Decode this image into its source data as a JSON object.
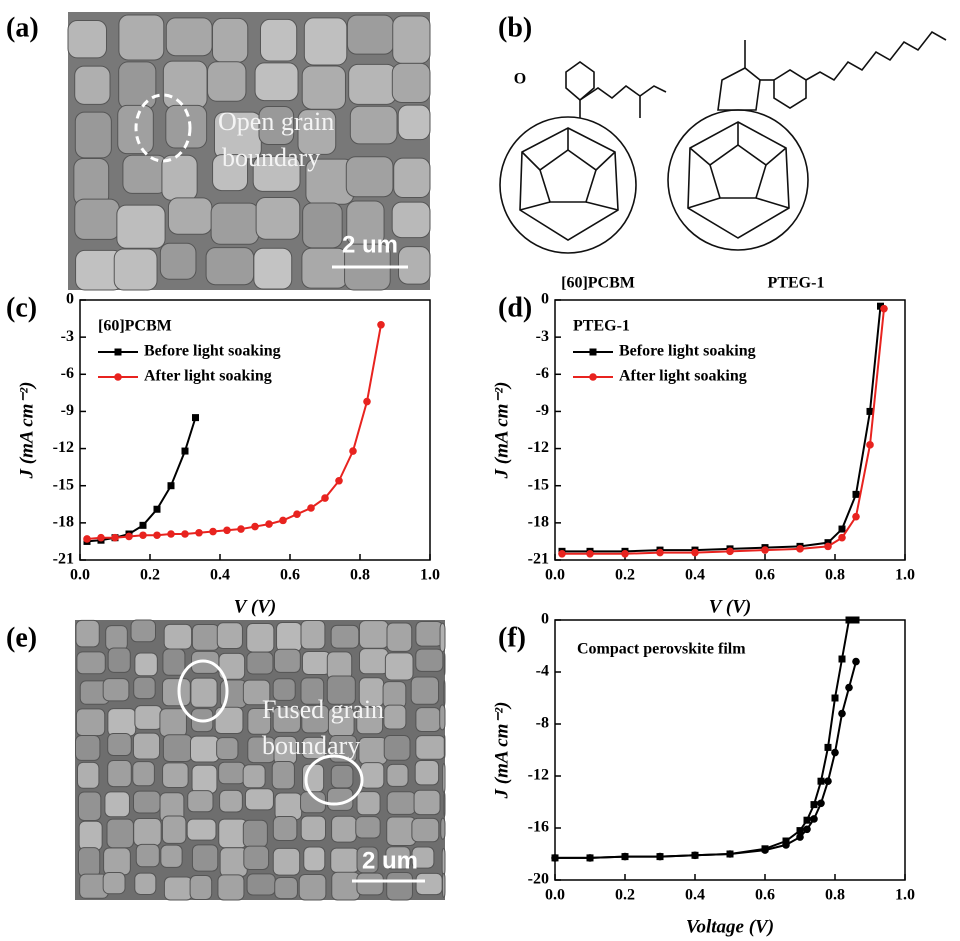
{
  "panels": {
    "a": {
      "label": "(a)",
      "annotation": [
        "Open grain",
        "boundary"
      ],
      "scale": "2 um"
    },
    "b": {
      "label": "(b)",
      "molecules": [
        "[60]PCBM",
        "PTEG-1"
      ]
    },
    "e": {
      "label": "(e)",
      "annotation": [
        "Fused grain",
        "boundary"
      ],
      "scale": "2 um"
    }
  },
  "chart_data": [
    {
      "type": "line",
      "label": "(c)",
      "legend_title": "[60]PCBM",
      "xlabel": "V (V)",
      "ylabel": "J (mA cm⁻²)",
      "xlim": [
        0,
        1
      ],
      "ylim": [
        -21,
        0
      ],
      "xticks": [
        {
          "value": 0,
          "label": "0.0"
        },
        0.2,
        0.4,
        0.6,
        0.8,
        {
          "value": 1,
          "label": "1.0"
        }
      ],
      "yticks": [
        0,
        -3,
        -6,
        -9,
        -12,
        -15,
        -18,
        -21
      ],
      "series": [
        {
          "name": "Before light soaking",
          "color": "#000000",
          "marker": "square",
          "x": [
            0.02,
            0.06,
            0.1,
            0.14,
            0.18,
            0.22,
            0.26,
            0.3,
            0.33
          ],
          "values": [
            -19.5,
            -19.4,
            -19.2,
            -18.9,
            -18.2,
            -16.9,
            -15.0,
            -12.2,
            -9.5
          ]
        },
        {
          "name": "After light soaking",
          "color": "#e8231f",
          "marker": "circle",
          "x": [
            0.02,
            0.06,
            0.1,
            0.14,
            0.18,
            0.22,
            0.26,
            0.3,
            0.34,
            0.38,
            0.42,
            0.46,
            0.5,
            0.54,
            0.58,
            0.62,
            0.66,
            0.7,
            0.74,
            0.78,
            0.82,
            0.86
          ],
          "values": [
            -19.3,
            -19.2,
            -19.2,
            -19.1,
            -19.0,
            -19.0,
            -18.9,
            -18.9,
            -18.8,
            -18.7,
            -18.6,
            -18.5,
            -18.3,
            -18.1,
            -17.8,
            -17.3,
            -16.8,
            -16.0,
            -14.6,
            -12.2,
            -8.2,
            -2.0
          ]
        }
      ]
    },
    {
      "type": "line",
      "label": "(d)",
      "legend_title": "PTEG-1",
      "xlabel": "V (V)",
      "ylabel": "J (mA cm⁻²)",
      "xlim": [
        0,
        1
      ],
      "ylim": [
        -21,
        0
      ],
      "xticks": [
        {
          "value": 0,
          "label": "0.0"
        },
        0.2,
        0.4,
        0.6,
        0.8,
        {
          "value": 1,
          "label": "1.0"
        }
      ],
      "yticks": [
        0,
        -3,
        -6,
        -9,
        -12,
        -15,
        -18,
        -21
      ],
      "series": [
        {
          "name": "Before light soaking",
          "color": "#000000",
          "marker": "square",
          "x": [
            0.02,
            0.1,
            0.2,
            0.3,
            0.4,
            0.5,
            0.6,
            0.7,
            0.78,
            0.82,
            0.86,
            0.9,
            0.93
          ],
          "values": [
            -20.3,
            -20.3,
            -20.3,
            -20.2,
            -20.2,
            -20.1,
            -20.0,
            -19.9,
            -19.6,
            -18.5,
            -15.7,
            -9.0,
            -0.5
          ]
        },
        {
          "name": "After light soaking",
          "color": "#e8231f",
          "marker": "circle",
          "x": [
            0.02,
            0.1,
            0.2,
            0.3,
            0.4,
            0.5,
            0.6,
            0.7,
            0.78,
            0.82,
            0.86,
            0.9,
            0.94
          ],
          "values": [
            -20.5,
            -20.5,
            -20.5,
            -20.4,
            -20.4,
            -20.3,
            -20.2,
            -20.1,
            -19.9,
            -19.2,
            -17.5,
            -11.7,
            -0.7
          ]
        }
      ]
    },
    {
      "type": "line",
      "label": "(f)",
      "annotation": "Compact perovskite film",
      "xlabel": "Voltage (V)",
      "ylabel": "J (mA cm⁻²)",
      "xlim": [
        0,
        1
      ],
      "ylim": [
        -20,
        0
      ],
      "xticks": [
        {
          "value": 0,
          "label": "0.0"
        },
        0.2,
        0.4,
        0.6,
        0.8,
        {
          "value": 1,
          "label": "1.0"
        }
      ],
      "yticks": [
        0,
        -4,
        -8,
        -12,
        -16,
        -20
      ],
      "series": [
        {
          "color": "#000000",
          "marker": "square",
          "x": [
            0.0,
            0.1,
            0.2,
            0.3,
            0.4,
            0.5,
            0.6,
            0.66,
            0.7,
            0.72,
            0.74,
            0.76,
            0.78,
            0.8,
            0.82,
            0.84,
            0.86
          ],
          "values": [
            -18.3,
            -18.3,
            -18.2,
            -18.2,
            -18.1,
            -18.0,
            -17.6,
            -17.0,
            -16.2,
            -15.4,
            -14.2,
            -12.4,
            -9.8,
            -6.0,
            -3.0,
            0.0,
            0.0
          ]
        },
        {
          "color": "#000000",
          "marker": "circle",
          "x": [
            0.0,
            0.1,
            0.2,
            0.3,
            0.4,
            0.5,
            0.6,
            0.66,
            0.7,
            0.72,
            0.74,
            0.76,
            0.78,
            0.8,
            0.82,
            0.84,
            0.86
          ],
          "values": [
            -18.3,
            -18.3,
            -18.2,
            -18.2,
            -18.1,
            -18.0,
            -17.7,
            -17.3,
            -16.7,
            -16.1,
            -15.3,
            -14.1,
            -12.4,
            -10.2,
            -7.2,
            -5.2,
            -3.2
          ]
        }
      ]
    }
  ]
}
